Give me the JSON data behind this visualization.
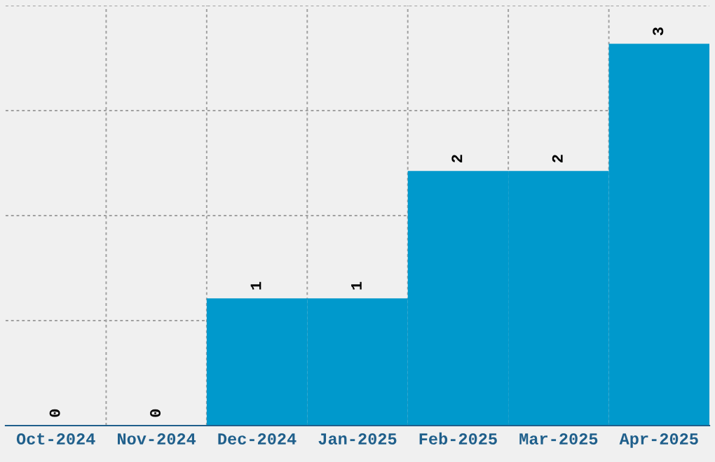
{
  "chart_data": {
    "type": "bar",
    "categories": [
      "Oct-2024",
      "Nov-2024",
      "Dec-2024",
      "Jan-2025",
      "Feb-2025",
      "Mar-2025",
      "Apr-2025"
    ],
    "values": [
      0,
      0,
      1,
      1,
      2,
      2,
      3
    ],
    "color": "#0099cc",
    "data_labels": true,
    "grid": true,
    "relative": false,
    "ylim": [
      0,
      3.3
    ],
    "yticks": [
      {
        "value": 0,
        "label": null
      },
      {
        "value": 0.825,
        "label": null
      },
      {
        "value": 1.65,
        "label": null
      },
      {
        "value": 2.475,
        "label": null
      },
      {
        "value": 3.3,
        "label": null
      }
    ],
    "tick_labels": "x"
  }
}
